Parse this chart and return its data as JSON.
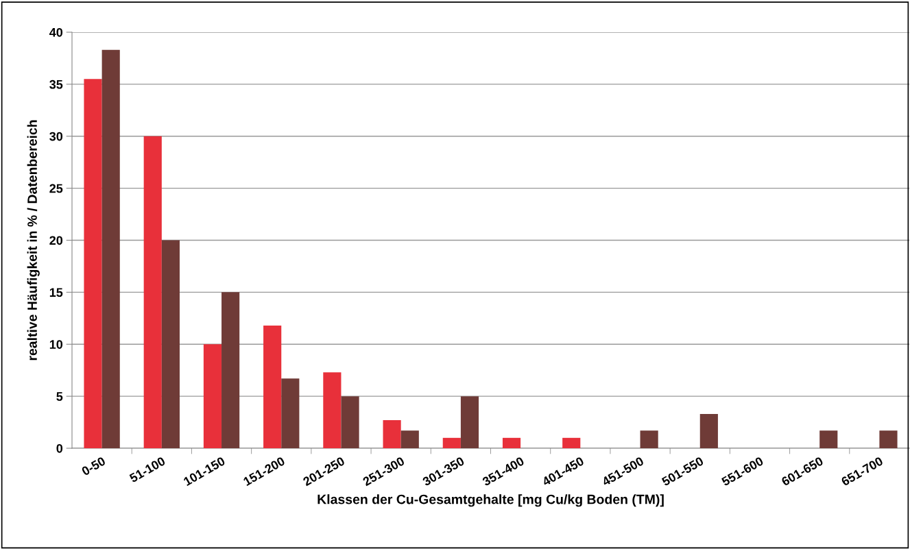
{
  "chart_data": {
    "type": "bar",
    "xlabel": "Klassen der Cu-Gesamtgehalte [mg Cu/kg Boden (TM)]",
    "ylabel": "realtive Häufigkeit in % / Datenbereich",
    "categories": [
      "0-50",
      "51-100",
      "101-150",
      "151-200",
      "201-250",
      "251-300",
      "301-350",
      "351-400",
      "401-450",
      "451-500",
      "501-550",
      "551-600",
      "601-650",
      "651-700"
    ],
    "series": [
      {
        "color": "#e8303a",
        "values": [
          35.5,
          30,
          10,
          11.8,
          7.3,
          2.7,
          1.0,
          1.0,
          1.0,
          0,
          0,
          0,
          0,
          0
        ]
      },
      {
        "color": "#6f3b37",
        "values": [
          38.3,
          20,
          15,
          6.7,
          5,
          1.7,
          5,
          0,
          0,
          1.7,
          3.3,
          0,
          1.7,
          1.7
        ]
      }
    ],
    "ylim": [
      0,
      40
    ],
    "yticks": [
      0,
      5,
      10,
      15,
      20,
      25,
      30,
      35,
      40
    ],
    "grid": "y",
    "legend": false
  }
}
